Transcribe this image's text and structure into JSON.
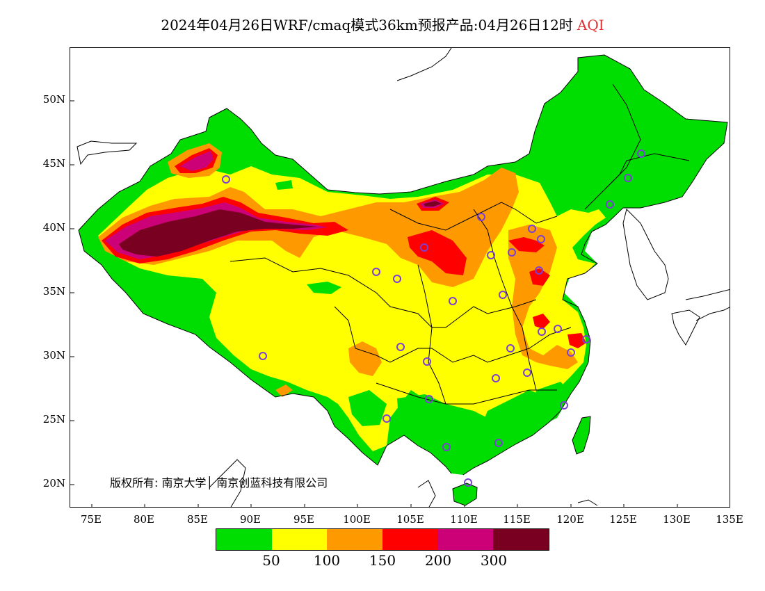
{
  "title": {
    "main": "2024年04月26日WRF/cmaq模式36km预报产品:04月26日12时",
    "variable": "AQI",
    "variable_color": "#e03030"
  },
  "axes": {
    "lat_labels": [
      "50N",
      "45N",
      "40N",
      "35N",
      "30N",
      "25N",
      "20N"
    ],
    "lon_labels": [
      "75E",
      "80E",
      "85E",
      "90E",
      "95E",
      "100E",
      "105E",
      "110E",
      "115E",
      "120E",
      "125E",
      "130E",
      "135E"
    ]
  },
  "legend": {
    "colors": [
      "#00dd00",
      "#ffff00",
      "#ff9900",
      "#ff0000",
      "#cc0077",
      "#7a0022"
    ],
    "tick_labels": [
      "50",
      "100",
      "150",
      "200",
      "300"
    ]
  },
  "copyright": "版权所有: 南京大学│ 南京创蓝科技有限公司",
  "map_colors": {
    "good": "#00dd00",
    "moderate": "#ffff00",
    "unhealthy_sensitive": "#ff9900",
    "unhealthy": "#ff0000",
    "very_unhealthy": "#cc0077",
    "hazardous": "#7a0022",
    "station_marker": "#7b3fd6"
  }
}
